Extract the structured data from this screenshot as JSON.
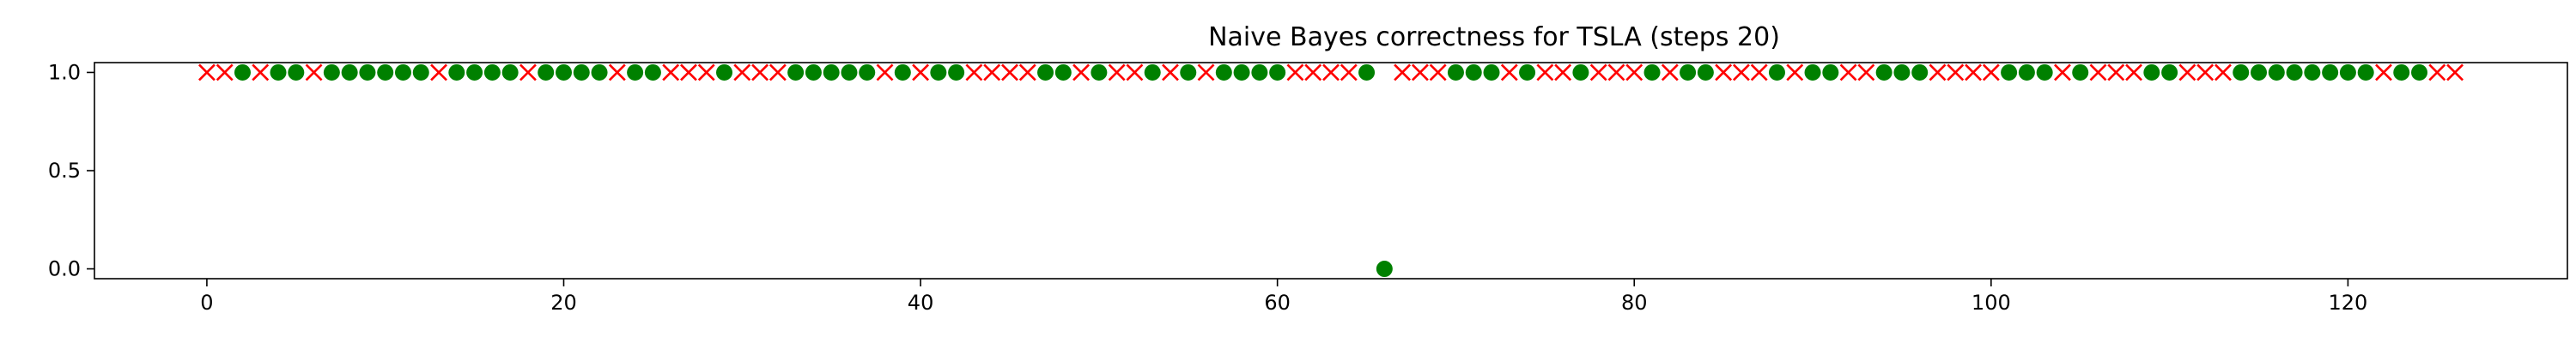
{
  "chart_data": {
    "type": "scatter",
    "title": "Naive Bayes correctness for TSLA (steps 20)",
    "xlabel": "",
    "ylabel": "",
    "xlim": [
      -6.3,
      132.3
    ],
    "ylim": [
      -0.05,
      1.05
    ],
    "xticks": [
      0,
      20,
      40,
      60,
      80,
      100,
      120
    ],
    "yticks": [
      0.0,
      0.5,
      1.0
    ],
    "ytick_labels": [
      "0.0",
      "0.5",
      "1.0"
    ],
    "grid": false,
    "legend": "none",
    "colors": {
      "correct": "#008000",
      "incorrect": "#ff0000"
    },
    "markers": {
      "correct": "filled-circle",
      "incorrect": "x-cross"
    },
    "y": [
      1,
      1,
      1,
      1,
      1,
      1,
      1,
      1,
      1,
      1,
      1,
      1,
      1,
      1,
      1,
      1,
      1,
      1,
      1,
      1,
      1,
      1,
      1,
      1,
      1,
      1,
      1,
      1,
      1,
      1,
      1,
      1,
      1,
      1,
      1,
      1,
      1,
      1,
      1,
      1,
      1,
      1,
      1,
      1,
      1,
      1,
      1,
      1,
      1,
      1,
      1,
      1,
      1,
      1,
      1,
      1,
      1,
      1,
      1,
      1,
      1,
      1,
      1,
      1,
      1,
      1,
      0,
      1,
      1,
      1,
      1,
      1,
      1,
      1,
      1,
      1,
      1,
      1,
      1,
      1,
      1,
      1,
      1,
      1,
      1,
      1,
      1,
      1,
      1,
      1,
      1,
      1,
      1,
      1,
      1,
      1,
      1,
      1,
      1,
      1,
      1,
      1,
      1,
      1,
      1,
      1,
      1,
      1,
      1,
      1,
      1,
      1,
      1,
      1,
      1,
      1,
      1,
      1,
      1,
      1,
      1,
      1,
      1,
      1,
      1,
      1,
      1
    ],
    "correct": [
      0,
      0,
      1,
      0,
      1,
      1,
      0,
      1,
      1,
      1,
      1,
      1,
      1,
      0,
      1,
      1,
      1,
      1,
      0,
      1,
      1,
      1,
      1,
      0,
      1,
      1,
      0,
      0,
      0,
      1,
      0,
      0,
      0,
      1,
      1,
      1,
      1,
      1,
      0,
      1,
      0,
      1,
      1,
      0,
      0,
      0,
      0,
      1,
      1,
      0,
      1,
      0,
      0,
      1,
      0,
      1,
      0,
      1,
      1,
      1,
      1,
      0,
      0,
      0,
      0,
      1,
      1,
      0,
      0,
      0,
      1,
      1,
      1,
      0,
      1,
      0,
      0,
      1,
      0,
      0,
      0,
      1,
      0,
      1,
      1,
      0,
      0,
      0,
      1,
      0,
      1,
      1,
      0,
      0,
      1,
      1,
      1,
      0,
      0,
      0,
      0,
      1,
      1,
      1,
      0,
      1,
      0,
      0,
      0,
      1,
      1,
      0,
      0,
      0,
      1,
      1,
      1,
      1,
      1,
      1,
      1,
      1,
      0,
      1,
      1,
      0,
      0
    ]
  }
}
